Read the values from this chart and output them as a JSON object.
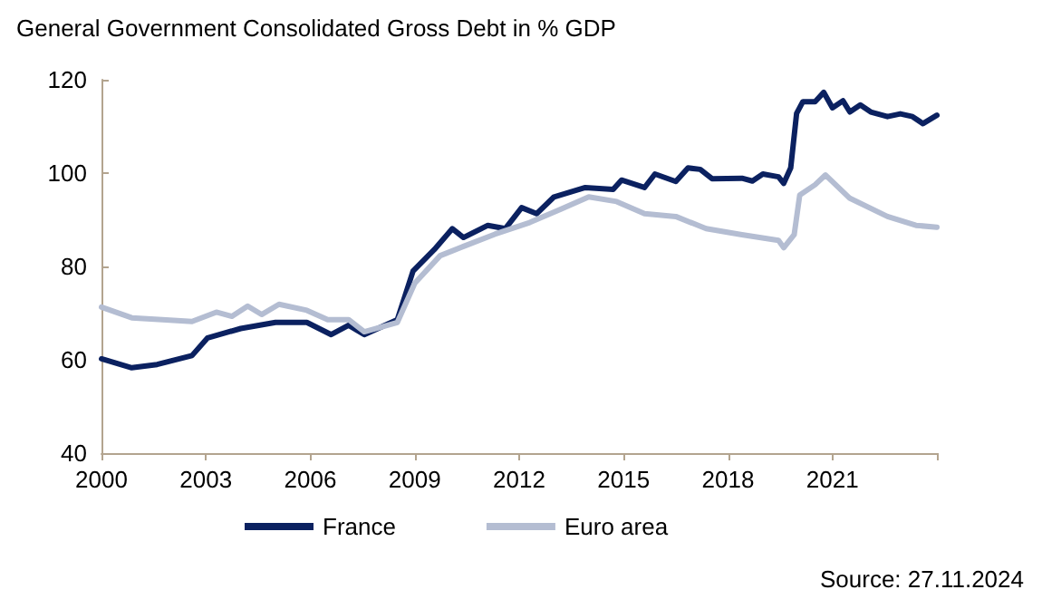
{
  "chart_data": {
    "type": "line",
    "title": "General Government Consolidated Gross Debt in % GDP",
    "annotations": [
      "Source: 27.11.2024"
    ],
    "xlim": [
      2000,
      2024
    ],
    "xticks": [
      2000,
      2003,
      2006,
      2009,
      2012,
      2015,
      2018,
      2021,
      {
        "value": 2024,
        "label": null
      }
    ],
    "ylim": [
      40,
      120
    ],
    "yticks": [
      40,
      60,
      80,
      100,
      120
    ],
    "grid": false,
    "legend": "bottom",
    "marker": "none",
    "line_style": "solid",
    "series": [
      {
        "name": "France",
        "color": "#0b2160",
        "x": [
          2000,
          2000.87,
          2001.6,
          2002.6,
          2003.05,
          2004,
          2005,
          2005.9,
          2006.6,
          2007.1,
          2007.55,
          2008.5,
          2008.95,
          2009.56,
          2010.08,
          2010.4,
          2011.1,
          2011.6,
          2012.07,
          2012.5,
          2013,
          2013.9,
          2014.7,
          2014.94,
          2015.6,
          2015.9,
          2016.5,
          2016.85,
          2017.2,
          2017.54,
          2018.4,
          2018.7,
          2019,
          2019.45,
          2019.6,
          2019.8,
          2019.97,
          2020.15,
          2020.5,
          2020.75,
          2021,
          2021.3,
          2021.5,
          2021.8,
          2022.1,
          2022.58,
          2022.95,
          2023.3,
          2023.6,
          2024
        ],
        "values": [
          60.2,
          58.3,
          59,
          60.9,
          64.7,
          66.7,
          68,
          68,
          65.4,
          67.4,
          65.4,
          68.6,
          79,
          83.6,
          88.1,
          86.2,
          88.8,
          88.1,
          92.6,
          91.3,
          94.9,
          96.9,
          96.5,
          98.5,
          96.9,
          99.8,
          98.2,
          101.1,
          100.8,
          98.8,
          98.9,
          98.3,
          99.8,
          99.2,
          97.8,
          101.1,
          112.8,
          115.3,
          115.3,
          117.3,
          114,
          115.5,
          113.1,
          114.6,
          113.1,
          112.1,
          112.7,
          112.1,
          110.6,
          112.4
        ]
      },
      {
        "name": "Euro area",
        "color": "#b4bdd2",
        "x": [
          2000,
          2000.87,
          2001.75,
          2002.6,
          2003.3,
          2003.75,
          2004.2,
          2004.6,
          2005.1,
          2005.9,
          2006.5,
          2007.1,
          2007.55,
          2008.5,
          2009,
          2009.73,
          2010.4,
          2011.3,
          2012.3,
          2013.2,
          2014,
          2014.8,
          2015.6,
          2016.5,
          2017.37,
          2018.4,
          2019.45,
          2019.6,
          2019.9,
          2020.06,
          2020.5,
          2020.8,
          2021.5,
          2022.58,
          2023.4,
          2024
        ],
        "values": [
          71.3,
          69,
          68.6,
          68.2,
          70.2,
          69.3,
          71.5,
          69.7,
          71.9,
          70.6,
          68.6,
          68.6,
          66,
          68,
          76.4,
          82.3,
          84.3,
          86.9,
          89.4,
          92.3,
          94.9,
          93.9,
          91.3,
          90.7,
          88.1,
          86.8,
          85.6,
          84,
          86.8,
          95.3,
          97.5,
          99.6,
          94.6,
          90.7,
          88.8,
          88.4
        ]
      }
    ]
  }
}
